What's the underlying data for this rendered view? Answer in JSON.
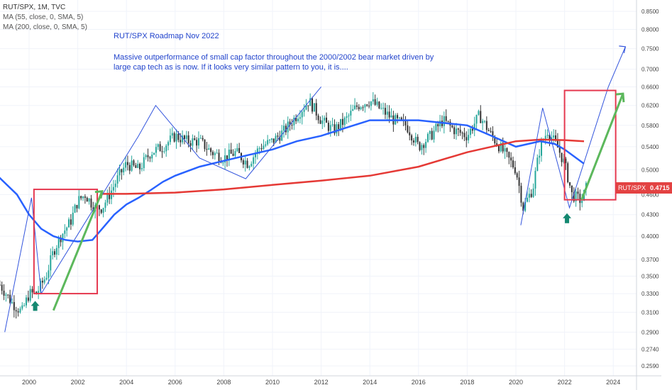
{
  "header": {
    "symbol_line": "RUT/SPX, 1M, TVC",
    "ma_lines": [
      "MA (55, close, 0, SMA, 5)",
      "MA (200, close, 0, SMA, 5)"
    ]
  },
  "annotation": {
    "title": "RUT/SPX Roadmap Nov 2022",
    "body": "Massive outperformance of small cap factor throughout the 2000/2002 bear market driven by large cap tech as is now. If it looks very similar pattern to you, it is...."
  },
  "price_tag": {
    "symbol": "RUT/SPX",
    "value": "0.4715"
  },
  "colors": {
    "up": "#26a69a",
    "down": "#333333",
    "ma55": "#2962ff",
    "ma200": "#e53935",
    "box": "#e53950",
    "path": "#3355dd",
    "arrow": "#5cb85c",
    "marker": "#138870"
  },
  "chart_data": {
    "type": "candlestick",
    "x_ticks": [
      "2000",
      "2002",
      "2004",
      "2006",
      "2008",
      "2010",
      "2012",
      "2014",
      "2016",
      "2018",
      "2020",
      "2022",
      "2024"
    ],
    "y_ticks": [
      "0.8500",
      "0.8000",
      "0.7500",
      "0.7000",
      "0.6600",
      "0.6200",
      "0.5800",
      "0.5400",
      "0.5000",
      "0.4600",
      "0.4300",
      "0.4000",
      "0.3700",
      "0.3500",
      "0.3300",
      "0.3100",
      "0.2900",
      "0.2740",
      "0.2590"
    ],
    "y_scale": "log",
    "price_path": [
      [
        1998.8,
        0.34
      ],
      [
        1999.3,
        0.32
      ],
      [
        1999.7,
        0.31
      ],
      [
        2000.0,
        0.33
      ],
      [
        2000.3,
        0.33
      ],
      [
        2000.7,
        0.35
      ],
      [
        2001.0,
        0.38
      ],
      [
        2001.3,
        0.4
      ],
      [
        2001.7,
        0.42
      ],
      [
        2002.0,
        0.45
      ],
      [
        2002.3,
        0.46
      ],
      [
        2002.7,
        0.44
      ],
      [
        2003.0,
        0.44
      ],
      [
        2003.3,
        0.46
      ],
      [
        2003.7,
        0.49
      ],
      [
        2004.0,
        0.51
      ],
      [
        2004.5,
        0.5
      ],
      [
        2005.0,
        0.53
      ],
      [
        2005.5,
        0.54
      ],
      [
        2006.0,
        0.56
      ],
      [
        2006.5,
        0.55
      ],
      [
        2007.0,
        0.55
      ],
      [
        2007.5,
        0.53
      ],
      [
        2008.0,
        0.52
      ],
      [
        2008.5,
        0.53
      ],
      [
        2009.0,
        0.51
      ],
      [
        2009.5,
        0.54
      ],
      [
        2010.0,
        0.55
      ],
      [
        2010.5,
        0.57
      ],
      [
        2011.0,
        0.6
      ],
      [
        2011.5,
        0.63
      ],
      [
        2012.0,
        0.59
      ],
      [
        2012.5,
        0.57
      ],
      [
        2013.0,
        0.59
      ],
      [
        2013.5,
        0.62
      ],
      [
        2014.0,
        0.63
      ],
      [
        2014.5,
        0.61
      ],
      [
        2015.0,
        0.59
      ],
      [
        2015.5,
        0.58
      ],
      [
        2016.0,
        0.54
      ],
      [
        2016.5,
        0.56
      ],
      [
        2017.0,
        0.59
      ],
      [
        2017.5,
        0.57
      ],
      [
        2018.0,
        0.56
      ],
      [
        2018.5,
        0.6
      ],
      [
        2019.0,
        0.56
      ],
      [
        2019.5,
        0.53
      ],
      [
        2020.0,
        0.5
      ],
      [
        2020.3,
        0.44
      ],
      [
        2020.7,
        0.47
      ],
      [
        2021.0,
        0.54
      ],
      [
        2021.3,
        0.57
      ],
      [
        2021.7,
        0.54
      ],
      [
        2022.0,
        0.51
      ],
      [
        2022.3,
        0.46
      ],
      [
        2022.7,
        0.45
      ],
      [
        2022.9,
        0.4715
      ]
    ],
    "ma55": [
      [
        1998.7,
        0.49
      ],
      [
        1999.5,
        0.46
      ],
      [
        2000.0,
        0.43
      ],
      [
        2000.5,
        0.41
      ],
      [
        2001.0,
        0.4
      ],
      [
        2001.5,
        0.395
      ],
      [
        2002.0,
        0.393
      ],
      [
        2002.6,
        0.395
      ],
      [
        2003.0,
        0.41
      ],
      [
        2003.5,
        0.43
      ],
      [
        2004.0,
        0.445
      ],
      [
        2004.5,
        0.455
      ],
      [
        2005.0,
        0.467
      ],
      [
        2005.5,
        0.48
      ],
      [
        2006.0,
        0.49
      ],
      [
        2007.0,
        0.505
      ],
      [
        2008.0,
        0.515
      ],
      [
        2009.0,
        0.525
      ],
      [
        2010.0,
        0.535
      ],
      [
        2011.0,
        0.55
      ],
      [
        2012.0,
        0.56
      ],
      [
        2013.0,
        0.575
      ],
      [
        2014.0,
        0.59
      ],
      [
        2015.0,
        0.59
      ],
      [
        2016.0,
        0.59
      ],
      [
        2017.0,
        0.585
      ],
      [
        2018.0,
        0.58
      ],
      [
        2019.0,
        0.56
      ],
      [
        2020.0,
        0.54
      ],
      [
        2021.0,
        0.55
      ],
      [
        2021.6,
        0.545
      ],
      [
        2022.0,
        0.535
      ],
      [
        2022.8,
        0.51
      ]
    ],
    "ma200": [
      [
        2003.0,
        0.461
      ],
      [
        2004.0,
        0.461
      ],
      [
        2006.0,
        0.463
      ],
      [
        2008.0,
        0.468
      ],
      [
        2010.0,
        0.475
      ],
      [
        2012.0,
        0.482
      ],
      [
        2014.0,
        0.49
      ],
      [
        2016.0,
        0.505
      ],
      [
        2018.0,
        0.53
      ],
      [
        2020.0,
        0.55
      ],
      [
        2021.0,
        0.553
      ],
      [
        2022.0,
        0.552
      ],
      [
        2022.8,
        0.55
      ]
    ],
    "boxes": [
      {
        "x": [
          2000.2,
          2002.8
        ],
        "y": [
          0.33,
          0.468
        ]
      },
      {
        "x": [
          2022.0,
          2024.1
        ],
        "y": [
          0.452,
          0.652
        ]
      }
    ]
  }
}
